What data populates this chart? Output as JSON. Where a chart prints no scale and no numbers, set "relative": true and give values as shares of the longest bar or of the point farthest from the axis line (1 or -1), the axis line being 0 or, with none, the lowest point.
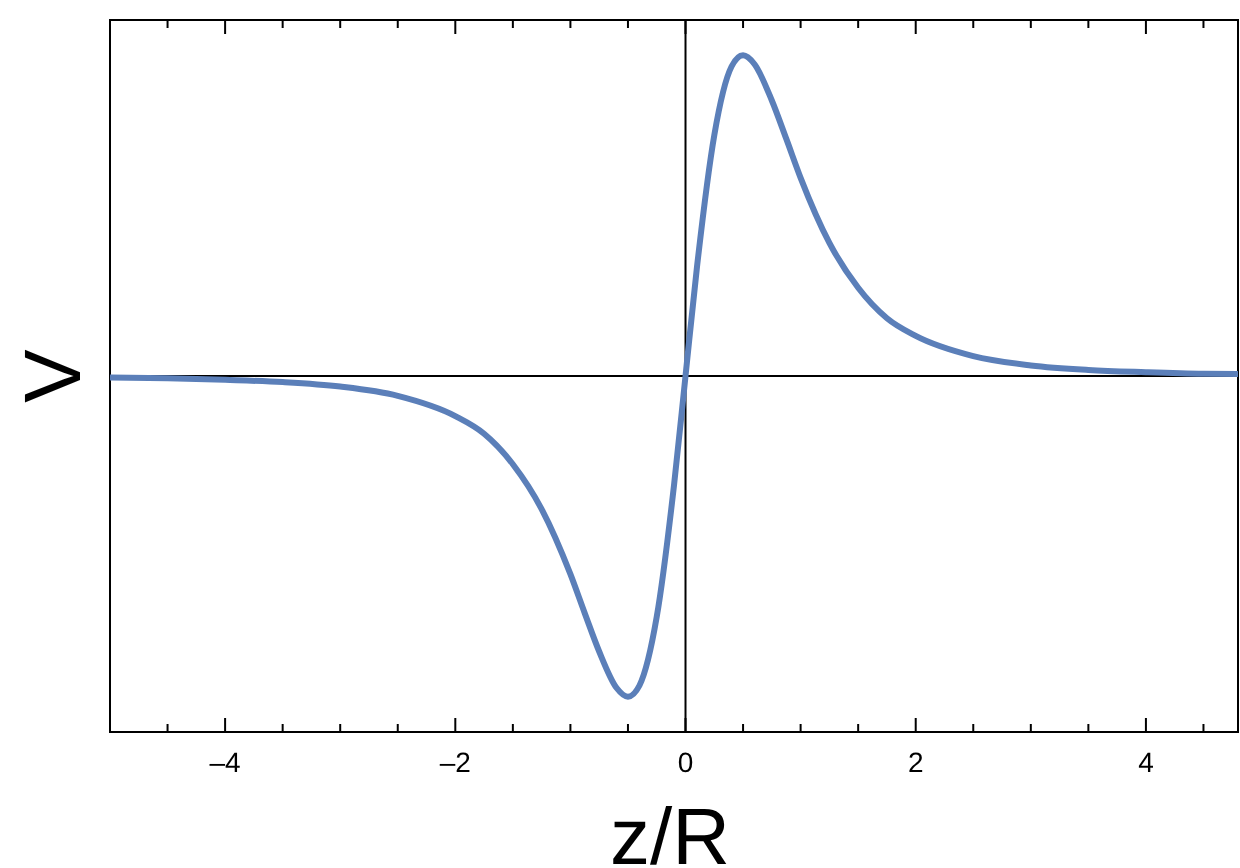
{
  "chart_data": {
    "type": "line",
    "xlabel": "z/R",
    "ylabel": "V",
    "relative": true,
    "xlim": [
      -5,
      4.8
    ],
    "xticks": [
      {
        "value": -4,
        "label": "–4"
      },
      {
        "value": -2,
        "label": "–2"
      },
      0,
      2,
      4
    ],
    "series": [
      {
        "color": "#5b7fb9",
        "x": [
          -5,
          -4.5,
          -4,
          -3.5,
          -3,
          -2.5,
          -2,
          -1.75,
          -1.5,
          -1.25,
          -1,
          -0.875,
          -0.75,
          -0.6,
          -0.5,
          -0.4,
          -0.25,
          -0.1,
          0,
          0.1,
          0.25,
          0.4,
          0.5,
          0.6,
          0.75,
          0.875,
          1,
          1.25,
          1.5,
          1.75,
          2,
          2.5,
          3,
          3.5,
          4,
          4.5,
          4.8
        ],
        "values": [
          -0.005,
          -0.007,
          -0.012,
          -0.019,
          -0.033,
          -0.062,
          -0.125,
          -0.18,
          -0.275,
          -0.415,
          -0.618,
          -0.74,
          -0.859,
          -0.972,
          -1,
          -0.965,
          -0.751,
          -0.341,
          0,
          0.341,
          0.751,
          0.965,
          1,
          0.972,
          0.859,
          0.74,
          0.618,
          0.415,
          0.275,
          0.18,
          0.125,
          0.062,
          0.033,
          0.019,
          0.012,
          0.007,
          0.006
        ]
      }
    ]
  }
}
